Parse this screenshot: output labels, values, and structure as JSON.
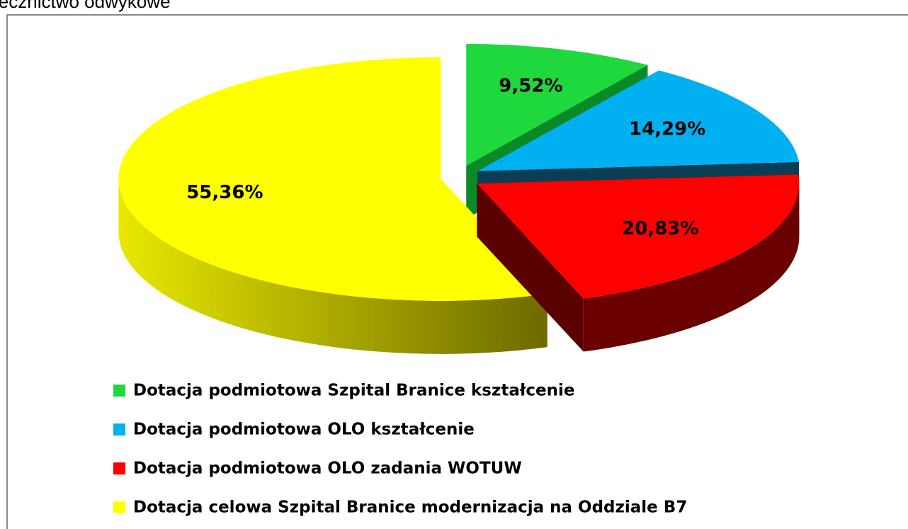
{
  "chart_data": {
    "type": "pie3d",
    "header": "lecznictwo odwykowe",
    "categories": [
      "Dotacja podmiotowa Szpital Branice kształcenie",
      "Dotacja podmiotowa OLO kształcenie",
      "Dotacja podmiotowa OLO zadania WOTUW",
      "Dotacja celowa Szpital Branice modernizacja na Oddziale B7"
    ],
    "values": [
      9.52,
      14.29,
      20.83,
      55.36
    ],
    "value_labels": [
      "9,52%",
      "14,29%",
      "20,83%",
      "55,36%"
    ],
    "colors": [
      "#1ed83e",
      "#00b0f0",
      "#ff0000",
      "#ffff00"
    ]
  }
}
